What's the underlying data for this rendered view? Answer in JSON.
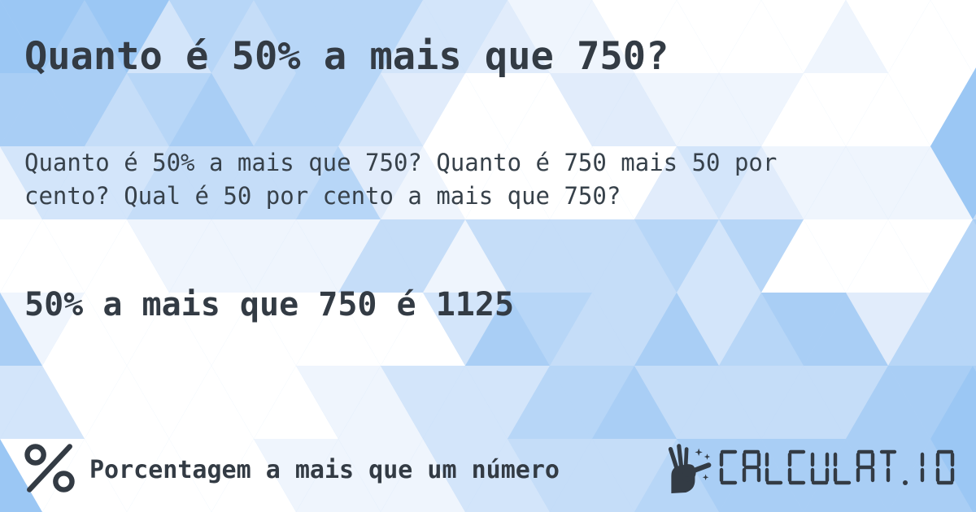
{
  "page": {
    "title": "Quanto é 50% a mais que 750?",
    "question_text": "Quanto é 50% a mais que 750? Quanto é 750 mais 50 por cento? Qual é 50 por cento a mais que 750?",
    "answer_text": "50% a mais que 750 é 1125"
  },
  "footer": {
    "category_icon": "percent-icon",
    "category_label": "Porcentagem a mais que um número",
    "brand_icon": "hand-magic-wand-icon",
    "brand_text": "CALCULAT.IO"
  },
  "colors": {
    "text": "#333b44",
    "logo": "#333b44",
    "background_base": "#b7d6f7",
    "pattern_palette": [
      "#8ebff2",
      "#9bc7f4",
      "#a9cef5",
      "#b7d6f7",
      "#c5ddf8",
      "#d3e5fa",
      "#e1ecfb",
      "#eff5fd",
      "#ffffff"
    ]
  }
}
